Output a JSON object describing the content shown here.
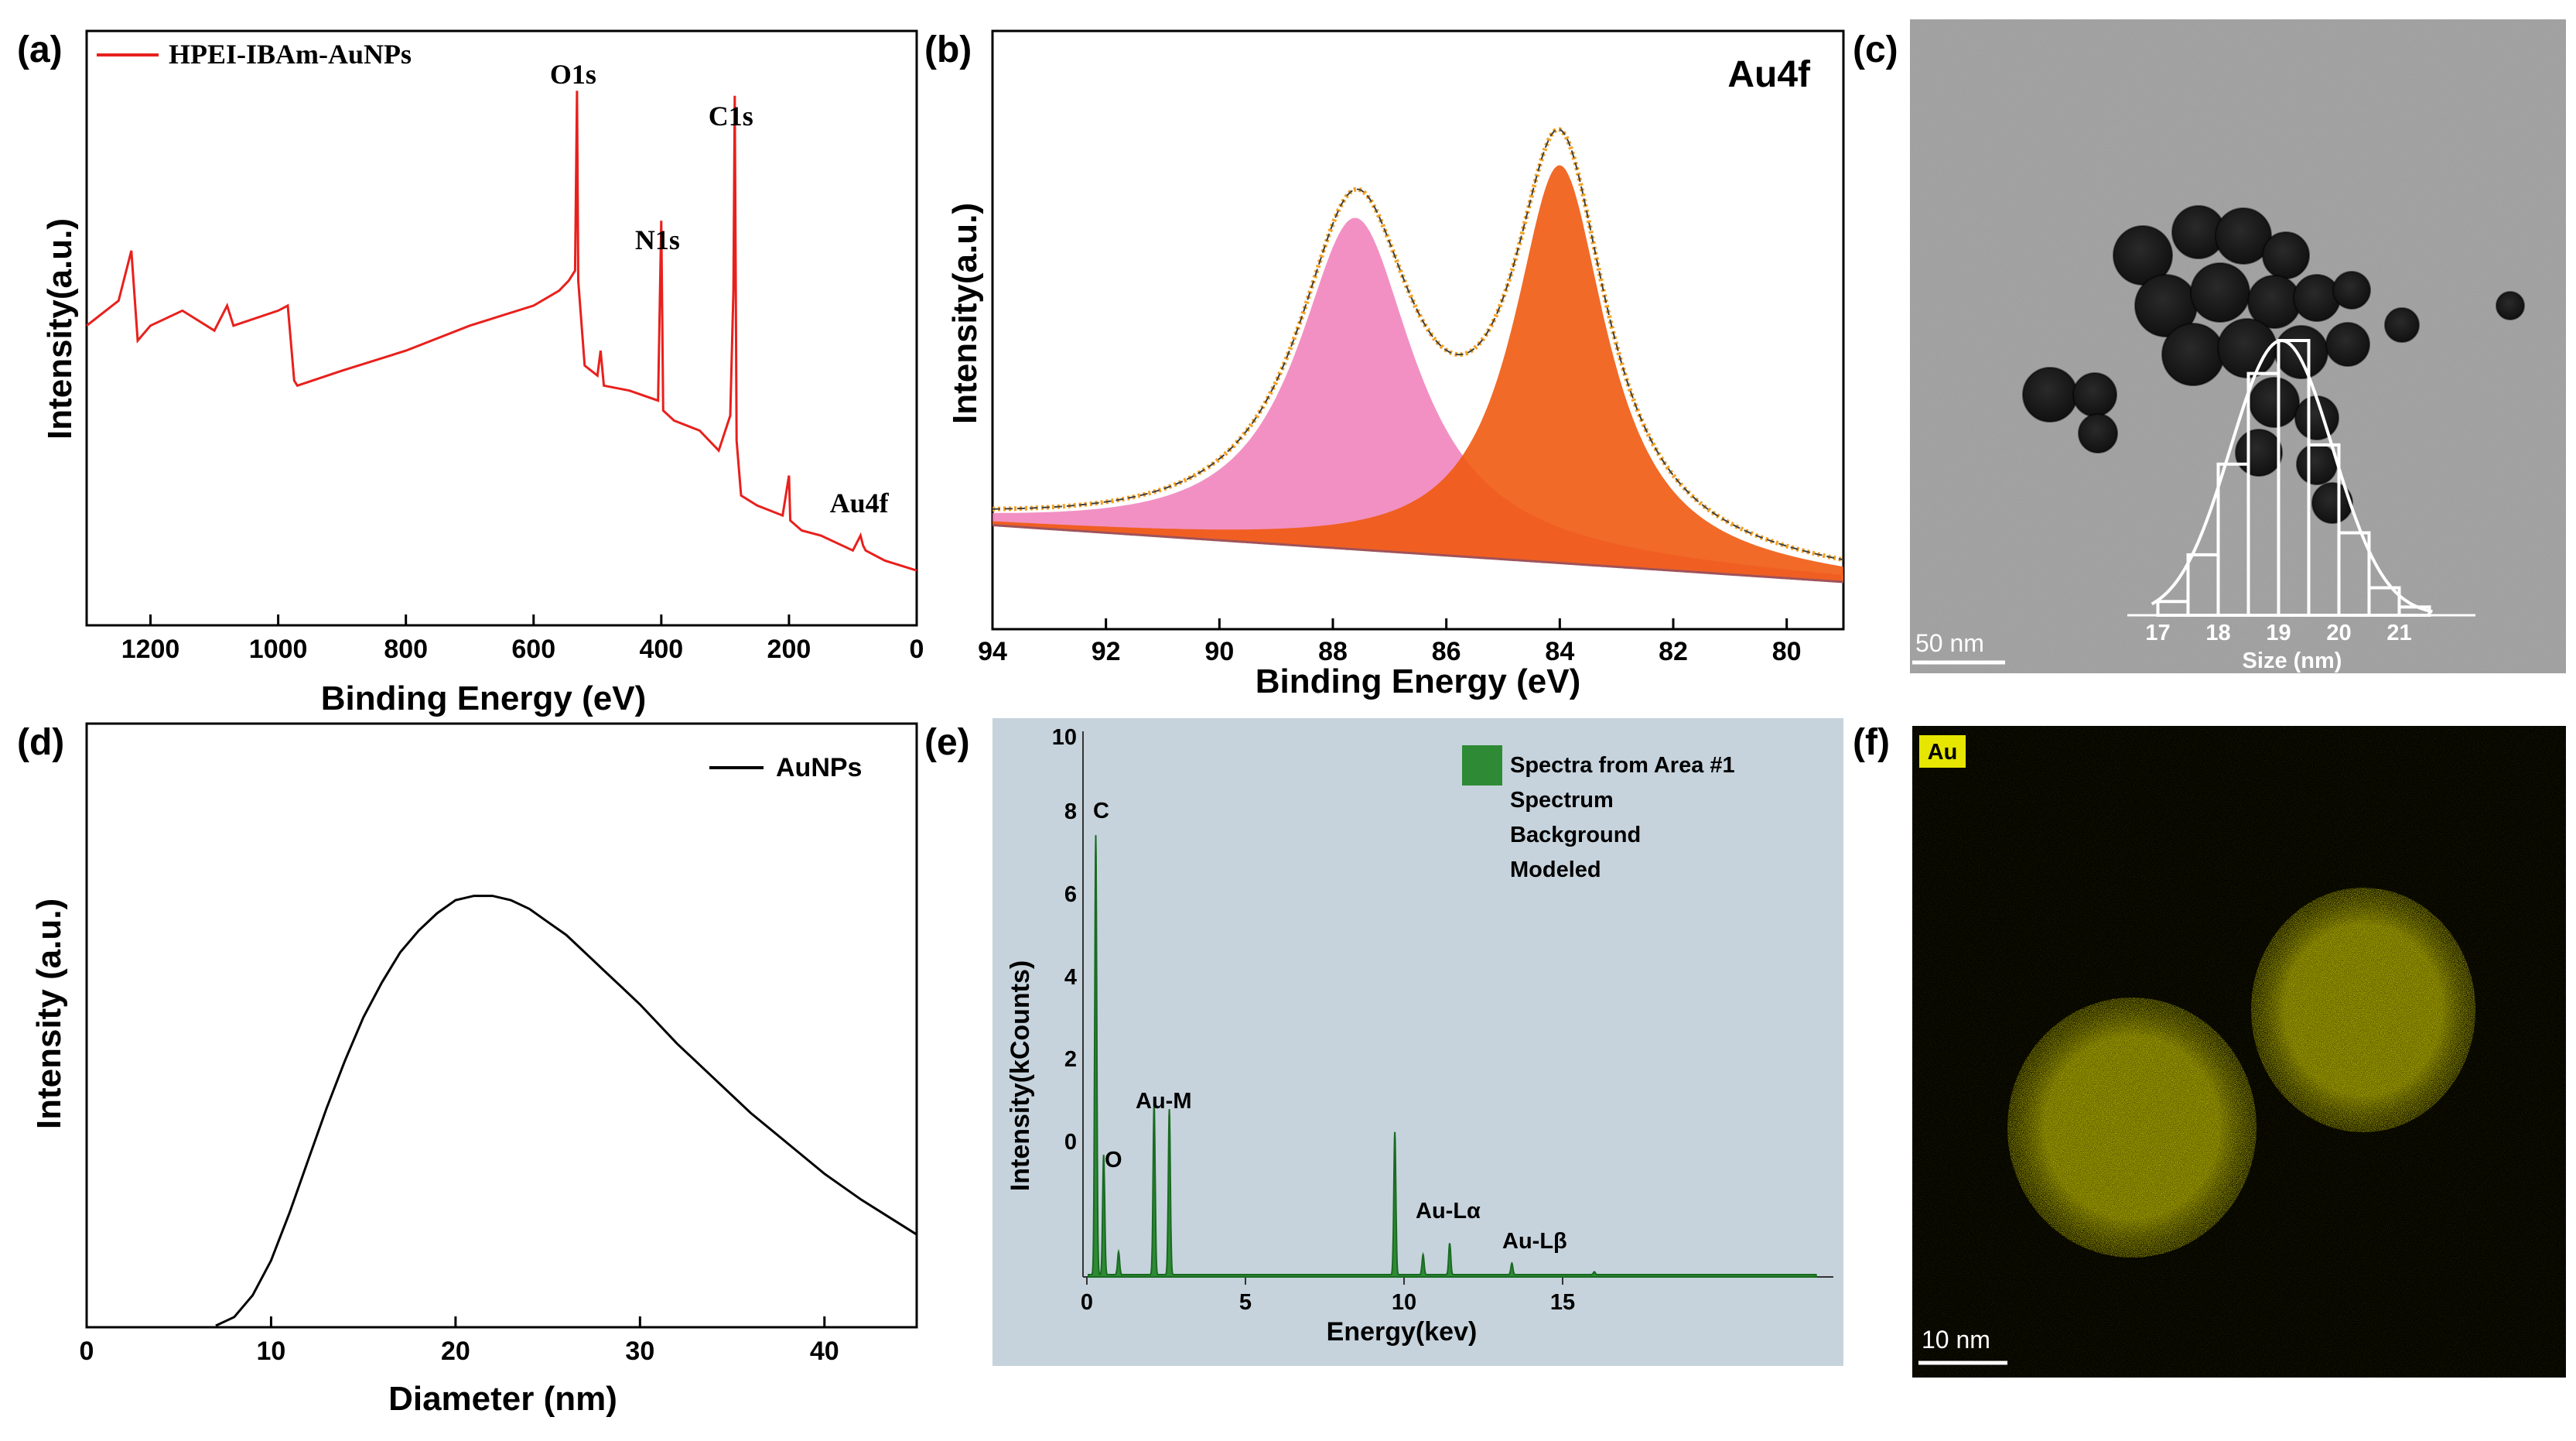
{
  "panels": {
    "a": {
      "label": "(a)"
    },
    "b": {
      "label": "(b)"
    },
    "c": {
      "label": "(c)"
    },
    "d": {
      "label": "(d)"
    },
    "e": {
      "label": "(e)"
    },
    "f": {
      "label": "(f)"
    }
  },
  "panel_c": {
    "scale_bar": "50 nm",
    "inset_xlabel": "Size (nm)",
    "inset_ticks": [
      "17",
      "18",
      "19",
      "20",
      "21"
    ],
    "inset_hist": {
      "bins": [
        17.25,
        17.75,
        18.25,
        18.75,
        19.25,
        19.75,
        20.25,
        20.75,
        21.25
      ],
      "relative_counts": [
        0.05,
        0.22,
        0.55,
        0.88,
        1.0,
        0.62,
        0.3,
        0.1,
        0.03
      ]
    }
  },
  "panel_f": {
    "element_badge": "Au",
    "scale_bar": "10 nm",
    "map_color": "#c8c400"
  },
  "colors": {
    "xps_red": "#e8201c",
    "fit_orange": "#f5a020",
    "edx_green": "#2e8a34",
    "edx_bg": "#c6d3dc"
  },
  "chart_data": [
    {
      "type": "line",
      "panel": "a",
      "title": "",
      "xlabel": "Binding Energy (eV)",
      "ylabel": "Intensity(a.u.)",
      "xlim": [
        1300,
        0
      ],
      "x_ticks": [
        "1200",
        "1000",
        "800",
        "600",
        "400",
        "200",
        "0"
      ],
      "x_tick_values": [
        1200,
        1000,
        800,
        600,
        400,
        200,
        0
      ],
      "legend": [
        "HPEI-IBAm-AuNPs"
      ],
      "annotations": [
        {
          "text": "O1s",
          "x": 532
        },
        {
          "text": "N1s",
          "x": 400
        },
        {
          "text": "C1s",
          "x": 285
        },
        {
          "text": "Au4f",
          "x": 84
        }
      ],
      "series": [
        {
          "name": "HPEI-IBAm-AuNPs",
          "x": [
            1300,
            1250,
            1230,
            1220,
            1200,
            1150,
            1100,
            1080,
            1070,
            1000,
            985,
            975,
            970,
            900,
            800,
            700,
            600,
            560,
            545,
            535,
            532,
            530,
            520,
            500,
            495,
            490,
            450,
            405,
            400,
            397,
            380,
            340,
            310,
            292,
            287,
            285,
            282,
            275,
            250,
            210,
            200,
            198,
            180,
            150,
            100,
            88,
            84,
            80,
            50,
            0
          ],
          "y": [
            0.53,
            0.58,
            0.68,
            0.5,
            0.53,
            0.56,
            0.52,
            0.57,
            0.53,
            0.56,
            0.57,
            0.42,
            0.41,
            0.44,
            0.48,
            0.53,
            0.57,
            0.6,
            0.62,
            0.64,
            1.0,
            0.62,
            0.45,
            0.43,
            0.48,
            0.41,
            0.4,
            0.38,
            0.74,
            0.36,
            0.34,
            0.32,
            0.28,
            0.35,
            0.6,
            0.99,
            0.3,
            0.19,
            0.17,
            0.15,
            0.23,
            0.14,
            0.12,
            0.11,
            0.08,
            0.11,
            0.09,
            0.08,
            0.06,
            0.04
          ]
        }
      ]
    },
    {
      "type": "area",
      "panel": "b",
      "title": "Au4f",
      "xlabel": "Binding Energy (eV)",
      "ylabel": "Intensity(a.u.)",
      "xlim": [
        94,
        79
      ],
      "x_ticks": [
        "94",
        "92",
        "90",
        "88",
        "86",
        "84",
        "82",
        "80"
      ],
      "x_tick_values": [
        94,
        92,
        90,
        88,
        86,
        84,
        82,
        80
      ],
      "peaks": [
        {
          "center": 87.6,
          "height": 0.7,
          "width": 1.25,
          "color": "#f07cb8"
        },
        {
          "center": 84.0,
          "height": 0.84,
          "width": 1.0,
          "color": "#f05a10"
        }
      ],
      "background": {
        "start": 0.12,
        "end": 0.0
      }
    },
    {
      "type": "line",
      "panel": "d",
      "title": "",
      "xlabel": "Diameter (nm)",
      "ylabel": "Intensity (a.u.)",
      "xlim": [
        0,
        45
      ],
      "x_ticks": [
        "0",
        "10",
        "20",
        "30",
        "40"
      ],
      "x_tick_values": [
        0,
        10,
        20,
        30,
        40
      ],
      "legend": [
        "AuNPs"
      ],
      "series": [
        {
          "name": "AuNPs",
          "x": [
            7,
            8,
            9,
            10,
            11,
            12,
            13,
            14,
            15,
            16,
            17,
            18,
            19,
            20,
            21,
            22,
            23,
            24,
            25,
            26,
            27,
            28,
            29,
            30,
            32,
            34,
            36,
            38,
            40,
            42,
            45
          ],
          "y": [
            0.0,
            0.02,
            0.07,
            0.15,
            0.26,
            0.38,
            0.5,
            0.61,
            0.71,
            0.79,
            0.86,
            0.91,
            0.95,
            0.98,
            0.99,
            0.99,
            0.98,
            0.96,
            0.93,
            0.9,
            0.86,
            0.82,
            0.78,
            0.74,
            0.65,
            0.57,
            0.49,
            0.42,
            0.35,
            0.29,
            0.21
          ]
        }
      ]
    },
    {
      "type": "bar",
      "panel": "e",
      "title": "",
      "xlabel": "Energy(kev)",
      "ylabel": "Intensity(kCounts)",
      "x_ticks": [
        "0",
        "5",
        "10",
        "15"
      ],
      "x_tick_values": [
        0,
        5,
        10,
        15
      ],
      "y_ticks": [
        "10",
        "8",
        "6",
        "4",
        "2",
        "0"
      ],
      "legend": [
        "Spectra from Area #1",
        "Spectrum",
        "Background",
        "Modeled"
      ],
      "annotations": [
        {
          "text": "C",
          "x": 0.28
        },
        {
          "text": "O",
          "x": 0.53
        },
        {
          "text": "Au-M",
          "x": 2.12
        },
        {
          "text": "Au-Lα",
          "x": 9.71
        },
        {
          "text": "Au-Lβ",
          "x": 11.44
        }
      ],
      "peaks": [
        {
          "x": 0.28,
          "y": 7.7
        },
        {
          "x": 0.53,
          "y": 2.1
        },
        {
          "x": 1.0,
          "y": 0.4
        },
        {
          "x": 2.12,
          "y": 3.0
        },
        {
          "x": 2.6,
          "y": 2.9
        },
        {
          "x": 9.71,
          "y": 2.5
        },
        {
          "x": 10.6,
          "y": 0.35
        },
        {
          "x": 11.44,
          "y": 0.55
        },
        {
          "x": 13.4,
          "y": 0.2
        },
        {
          "x": 16.0,
          "y": 0.05
        }
      ]
    }
  ]
}
